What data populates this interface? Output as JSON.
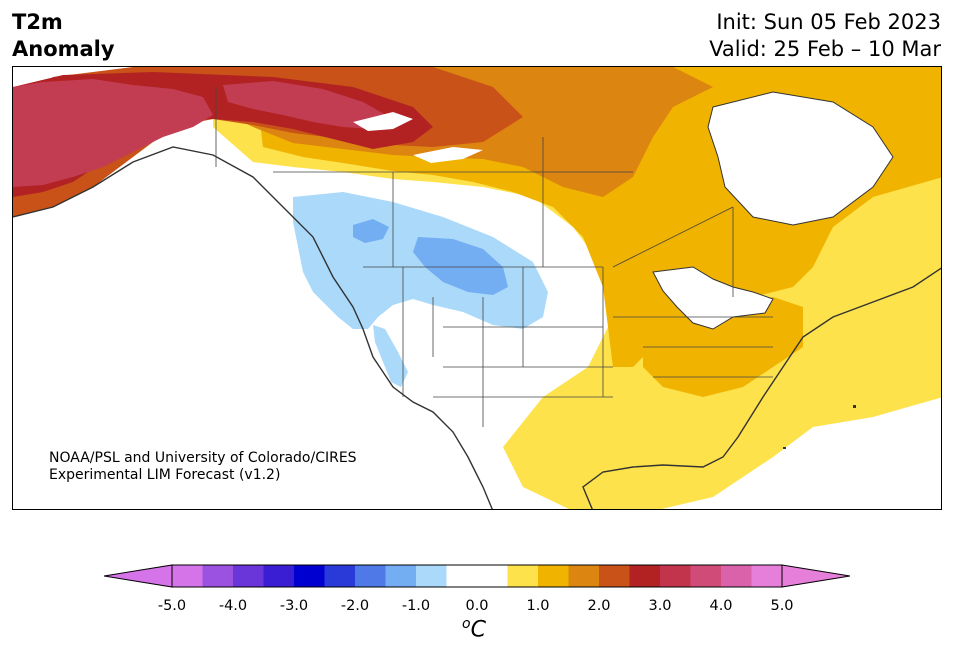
{
  "title": {
    "variable_line1": "T2m",
    "variable_line2": "Anomaly",
    "init": "Init: Sun 05 Feb 2023",
    "valid": "Valid: 25 Feb – 10 Mar"
  },
  "credit": {
    "line1": "NOAA/PSL and University of Colorado/CIRES",
    "line2": "Experimental LIM Forecast (v1.2)"
  },
  "colorbar": {
    "unit_base": "C",
    "unit_prefix": "o",
    "tick_labels": [
      "-5.0",
      "-4.0",
      "-3.0",
      "-2.0",
      "-1.0",
      "0.0",
      "1.0",
      "2.0",
      "3.0",
      "4.0",
      "5.0"
    ],
    "min": -5.0,
    "max": 5.0,
    "colors": [
      "#d573e8",
      "#9b52e0",
      "#6a35d9",
      "#3a1ed3",
      "#0000d0",
      "#2a3ad8",
      "#4f79e6",
      "#74aef2",
      "#abd9fa",
      "#ffffff",
      "#ffffff",
      "#fde24b",
      "#f0b300",
      "#dc8510",
      "#c85218",
      "#b22222",
      "#c2344c",
      "#d04b78",
      "#da62ab",
      "#e67fd9"
    ],
    "under_color": "#d573e8",
    "over_color": "#e67fd9"
  },
  "map": {
    "region": "North America",
    "anomaly_colors": {
      "strong_warm": "#b22222",
      "very_warm": "#c23c52",
      "warm_3": "#c85218",
      "warm_2": "#dc8510",
      "warm_1": "#f0b300",
      "weak_warm": "#fde24b",
      "neutral": "#ffffff",
      "weak_cold": "#abd9fa",
      "cold_1": "#74aef2"
    }
  }
}
